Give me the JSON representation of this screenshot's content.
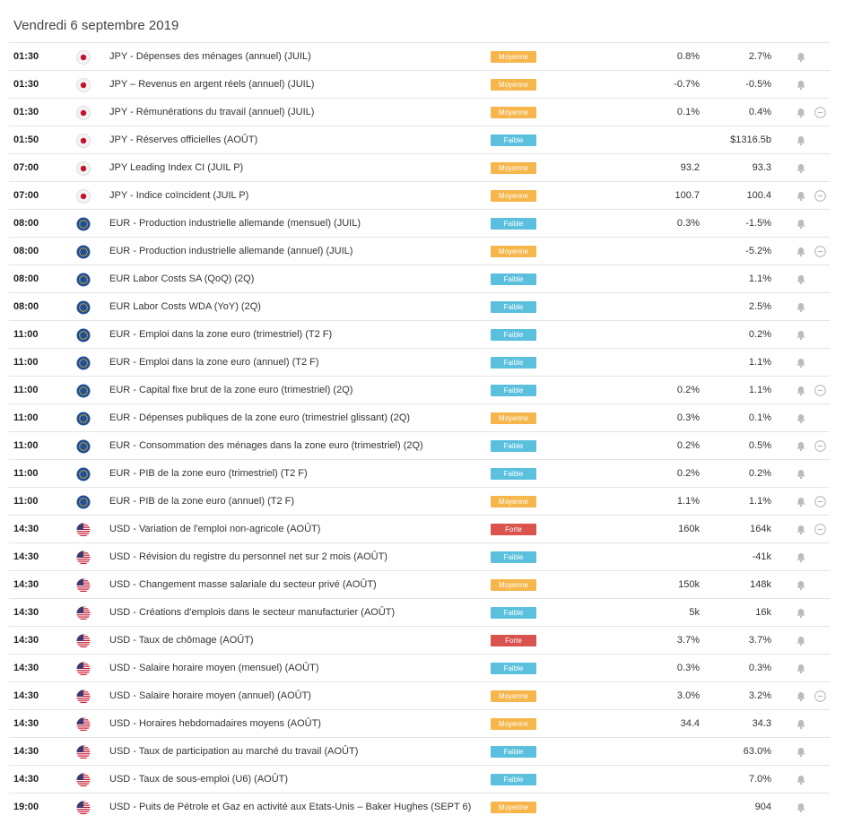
{
  "header": {
    "title": "Vendredi 6 septembre 2019"
  },
  "table": {
    "rows": [
      {
        "time": "01:30",
        "flag": "jp",
        "event": "JPY - Dépenses des ménages (annuel) (JUIL)",
        "impact": {
          "label": "Moyenne",
          "color": "#f7b64c"
        },
        "forecast": "0.8%",
        "previous": "2.7%",
        "expand": false
      },
      {
        "time": "01:30",
        "flag": "jp",
        "event": "JPY – Revenus en argent réels (annuel) (JUIL)",
        "impact": {
          "label": "Moyenne",
          "color": "#f7b64c"
        },
        "forecast": "-0.7%",
        "previous": "-0.5%",
        "expand": false
      },
      {
        "time": "01:30",
        "flag": "jp",
        "event": "JPY - Rémunérations du travail (annuel) (JUIL)",
        "impact": {
          "label": "Moyenne",
          "color": "#f7b64c"
        },
        "forecast": "0.1%",
        "previous": "0.4%",
        "expand": true
      },
      {
        "time": "01:50",
        "flag": "jp",
        "event": "JPY - Réserves officielles (AOÛT)",
        "impact": {
          "label": "Faible",
          "color": "#5bc0de"
        },
        "previous": "$1316.5b",
        "expand": false
      },
      {
        "time": "07:00",
        "flag": "jp",
        "event": "JPY Leading Index CI (JUIL P)",
        "impact": {
          "label": "Moyenne",
          "color": "#f7b64c"
        },
        "forecast": "93.2",
        "previous": "93.3",
        "expand": false
      },
      {
        "time": "07:00",
        "flag": "jp",
        "event": "JPY - Indice coïncident (JUIL P)",
        "impact": {
          "label": "Moyenne",
          "color": "#f7b64c"
        },
        "forecast": "100.7",
        "previous": "100.4",
        "expand": true
      },
      {
        "time": "08:00",
        "flag": "eu",
        "event": "EUR - Production industrielle allemande (mensuel) (JUIL)",
        "impact": {
          "label": "Faible",
          "color": "#5bc0de"
        },
        "forecast": "0.3%",
        "previous": "-1.5%",
        "expand": false
      },
      {
        "time": "08:00",
        "flag": "eu",
        "event": "EUR - Production industrielle allemande (annuel) (JUIL)",
        "impact": {
          "label": "Moyenne",
          "color": "#f7b64c"
        },
        "previous": "-5.2%",
        "expand": true
      },
      {
        "time": "08:00",
        "flag": "eu",
        "event": "EUR Labor Costs SA (QoQ) (2Q)",
        "impact": {
          "label": "Faible",
          "color": "#5bc0de"
        },
        "previous": "1.1%",
        "expand": false
      },
      {
        "time": "08:00",
        "flag": "eu",
        "event": "EUR Labor Costs WDA (YoY) (2Q)",
        "impact": {
          "label": "Faible",
          "color": "#5bc0de"
        },
        "previous": "2.5%",
        "expand": false
      },
      {
        "time": "11:00",
        "flag": "eu",
        "event": "EUR - Emploi dans la zone euro (trimestriel) (T2 F)",
        "impact": {
          "label": "Faible",
          "color": "#5bc0de"
        },
        "previous": "0.2%",
        "expand": false
      },
      {
        "time": "11:00",
        "flag": "eu",
        "event": "EUR - Emploi dans la zone euro (annuel) (T2 F)",
        "impact": {
          "label": "Faible",
          "color": "#5bc0de"
        },
        "previous": "1.1%",
        "expand": false
      },
      {
        "time": "11:00",
        "flag": "eu",
        "event": "EUR - Capital fixe brut de la zone euro (trimestriel) (2Q)",
        "impact": {
          "label": "Faible",
          "color": "#5bc0de"
        },
        "forecast": "0.2%",
        "previous": "1.1%",
        "expand": true
      },
      {
        "time": "11:00",
        "flag": "eu",
        "event": "EUR - Dépenses publiques de la zone euro (trimestriel glissant) (2Q)",
        "impact": {
          "label": "Moyenne",
          "color": "#f7b64c"
        },
        "forecast": "0.3%",
        "previous": "0.1%",
        "expand": false
      },
      {
        "time": "11:00",
        "flag": "eu",
        "event": "EUR - Consommation des ménages dans la zone euro (trimestriel) (2Q)",
        "impact": {
          "label": "Faible",
          "color": "#5bc0de"
        },
        "forecast": "0.2%",
        "previous": "0.5%",
        "expand": true
      },
      {
        "time": "11:00",
        "flag": "eu",
        "event": "EUR - PIB de la zone euro (trimestriel) (T2 F)",
        "impact": {
          "label": "Faible",
          "color": "#5bc0de"
        },
        "forecast": "0.2%",
        "previous": "0.2%",
        "expand": false
      },
      {
        "time": "11:00",
        "flag": "eu",
        "event": "EUR - PIB de la zone euro (annuel) (T2 F)",
        "impact": {
          "label": "Moyenne",
          "color": "#f7b64c"
        },
        "forecast": "1.1%",
        "previous": "1.1%",
        "expand": true
      },
      {
        "time": "14:30",
        "flag": "us",
        "event": "USD - Variation de l'emploi non-agricole (AOÛT)",
        "impact": {
          "label": "Forte",
          "color": "#d9534f"
        },
        "forecast": "160k",
        "previous": "164k",
        "expand": true
      },
      {
        "time": "14:30",
        "flag": "us",
        "event": "USD - Révision du registre du personnel net sur 2 mois (AOÛT)",
        "impact": {
          "label": "Faible",
          "color": "#5bc0de"
        },
        "previous": "-41k",
        "expand": false
      },
      {
        "time": "14:30",
        "flag": "us",
        "event": "USD - Changement masse salariale du secteur privé (AOÛT)",
        "impact": {
          "label": "Moyenne",
          "color": "#f7b64c"
        },
        "forecast": "150k",
        "previous": "148k",
        "expand": false
      },
      {
        "time": "14:30",
        "flag": "us",
        "event": "USD - Créations d'emplois dans le secteur manufacturier (AOÛT)",
        "impact": {
          "label": "Faible",
          "color": "#5bc0de"
        },
        "forecast": "5k",
        "previous": "16k",
        "expand": false
      },
      {
        "time": "14:30",
        "flag": "us",
        "event": "USD - Taux de chômage (AOÛT)",
        "impact": {
          "label": "Forte",
          "color": "#d9534f"
        },
        "forecast": "3.7%",
        "previous": "3.7%",
        "expand": false
      },
      {
        "time": "14:30",
        "flag": "us",
        "event": "USD - Salaire horaire moyen (mensuel) (AOÛT)",
        "impact": {
          "label": "Faible",
          "color": "#5bc0de"
        },
        "forecast": "0.3%",
        "previous": "0.3%",
        "expand": false
      },
      {
        "time": "14:30",
        "flag": "us",
        "event": "USD - Salaire horaire moyen (annuel) (AOÛT)",
        "impact": {
          "label": "Moyenne",
          "color": "#f7b64c"
        },
        "forecast": "3.0%",
        "previous": "3.2%",
        "expand": true
      },
      {
        "time": "14:30",
        "flag": "us",
        "event": "USD - Horaires hebdomadaires moyens (AOÛT)",
        "impact": {
          "label": "Moyenne",
          "color": "#f7b64c"
        },
        "forecast": "34.4",
        "previous": "34.3",
        "expand": false
      },
      {
        "time": "14:30",
        "flag": "us",
        "event": "USD - Taux de participation au marché du travail (AOÛT)",
        "impact": {
          "label": "Faible",
          "color": "#5bc0de"
        },
        "previous": "63.0%",
        "expand": false
      },
      {
        "time": "14:30",
        "flag": "us",
        "event": "USD - Taux de sous-emploi (U6) (AOÛT)",
        "impact": {
          "label": "Faible",
          "color": "#5bc0de"
        },
        "previous": "7.0%",
        "expand": false
      },
      {
        "time": "19:00",
        "flag": "us",
        "event": "USD - Puits de Pétrole et Gaz en activité aux Etats-Unis – Baker Hughes (SEPT 6)",
        "impact": {
          "label": "Moyenne",
          "color": "#f7b64c"
        },
        "previous": "904",
        "expand": false
      }
    ]
  }
}
